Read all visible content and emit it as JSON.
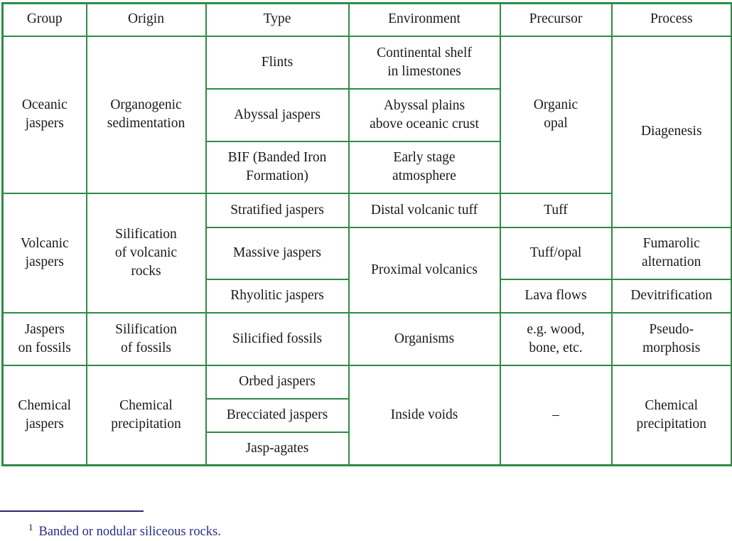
{
  "table": {
    "headers": [
      "Group",
      "Origin",
      "Type",
      "Environment",
      "Precursor",
      "Process"
    ],
    "groups": {
      "oceanic": "Oceanic\njaspers",
      "volcanic": "Volcanic\njaspers",
      "fossils": "Jaspers\non fossils",
      "chemical": "Chemical\njaspers"
    },
    "origins": {
      "oceanic": "Organogenic\nsedimentation",
      "volcanic": "Silification\nof volcanic\nrocks",
      "fossils": "Silification\nof fossils",
      "chemical": "Chemical\nprecipitation"
    },
    "types": {
      "flints": "Flints",
      "abyssal": "Abyssal jaspers",
      "bif": "BIF (Banded Iron\nFormation)",
      "stratified": "Stratified jaspers",
      "massive": "Massive jaspers",
      "rhyolitic": "Rhyolitic jaspers",
      "silicified_fossils": "Silicified fossils",
      "orbed": "Orbed jaspers",
      "brecciated": "Brecciated jaspers",
      "jasp_agates": "Jasp-agates"
    },
    "environments": {
      "continental_shelf": "Continental shelf\nin limestones",
      "abyssal_plains": "Abyssal plains\nabove oceanic crust",
      "early_atmosphere": "Early stage\natmosphere",
      "distal_tuff": "Distal volcanic tuff",
      "proximal_volcanics": "Proximal volcanics",
      "organisms": "Organisms",
      "inside_voids": "Inside voids"
    },
    "precursors": {
      "organic_opal": "Organic\nopal",
      "tuff": "Tuff",
      "tuff_opal": "Tuff/opal",
      "lava_flows": "Lava flows",
      "wood_bone": "e.g. wood,\nbone, etc.",
      "none": "–"
    },
    "processes": {
      "diagenesis": "Diagenesis",
      "fumarolic": "Fumarolic\nalternation",
      "devitrification": "Devitrification",
      "pseudomorphosis": "Pseudo-\nmorphosis",
      "chemical_precipitation": "Chemical\nprecipitation"
    }
  },
  "footnote": {
    "number": "1",
    "text": "Banded or nodular siliceous rocks."
  },
  "colors": {
    "border": "#2e8b46",
    "footnote_text": "#2b2b8a"
  }
}
